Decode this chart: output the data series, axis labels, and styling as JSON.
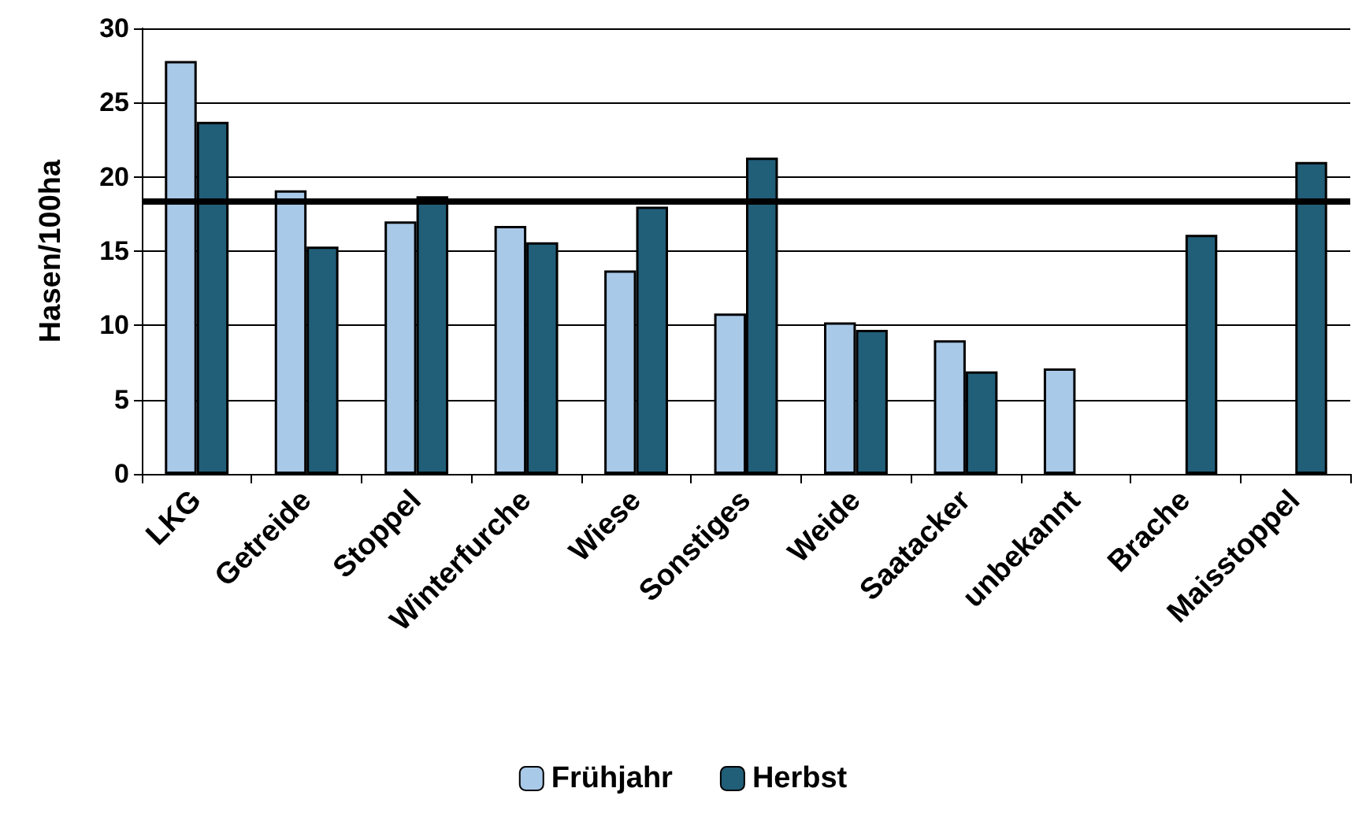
{
  "chart_data": {
    "type": "bar",
    "ylabel": "Hasen/100ha",
    "categories": [
      "LKG",
      "Getreide",
      "Stoppel",
      "Winterfurche",
      "Wiese",
      "Sonstiges",
      "Weide",
      "Saatacker",
      "unbekannt",
      "Brache",
      "Maisstoppel"
    ],
    "series": [
      {
        "name": "Frühjahr",
        "color": "#a9c9e8",
        "values": [
          27.8,
          19.1,
          17.0,
          16.7,
          13.7,
          10.8,
          10.2,
          9.0,
          7.1,
          null,
          null
        ]
      },
      {
        "name": "Herbst",
        "color": "#215e78",
        "values": [
          23.7,
          15.3,
          18.7,
          15.6,
          18.0,
          21.3,
          9.7,
          6.9,
          null,
          16.1,
          21.0
        ]
      }
    ],
    "ylim": [
      0,
      30
    ],
    "yticks": [
      0,
      5,
      10,
      15,
      20,
      25,
      30
    ],
    "grid": "y",
    "legend": "bottom",
    "ref_lines": [
      {
        "axis": "y",
        "value": 18.4,
        "color": "#000000"
      }
    ]
  }
}
